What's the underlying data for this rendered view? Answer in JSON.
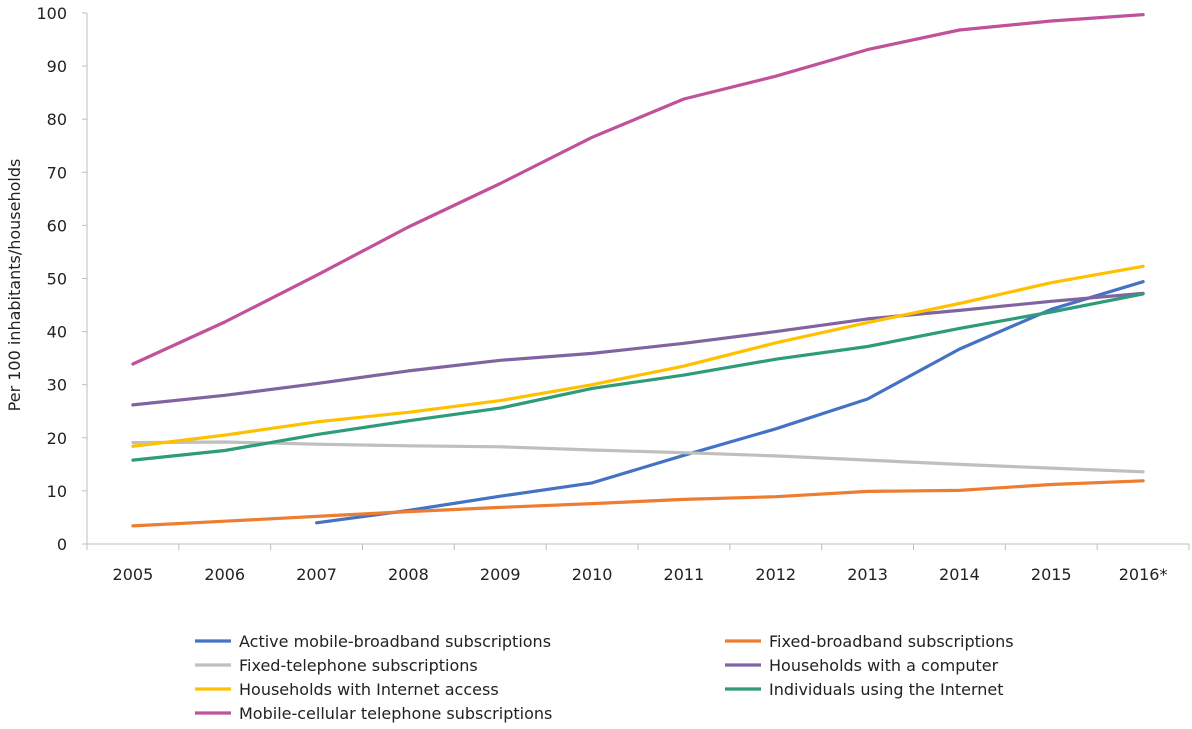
{
  "chart_data": {
    "type": "line",
    "title": "",
    "xlabel": "",
    "ylabel": "Per 100 inhabitants/households",
    "categories": [
      "2005",
      "2006",
      "2007",
      "2008",
      "2009",
      "2010",
      "2011",
      "2012",
      "2013",
      "2014",
      "2015",
      "2016*"
    ],
    "ylim": [
      0,
      100
    ],
    "yticks": [
      0,
      10,
      20,
      30,
      40,
      50,
      60,
      70,
      80,
      90,
      100
    ],
    "grid": false,
    "legend_position": "bottom",
    "series": [
      {
        "name": "Active mobile-broadband subscriptions",
        "color": "#4472C4",
        "values": [
          null,
          null,
          4.0,
          6.3,
          9.0,
          11.5,
          16.7,
          21.7,
          27.3,
          36.7,
          44.2,
          49.4
        ]
      },
      {
        "name": "Fixed-broadband subscriptions",
        "color": "#ED7D31",
        "values": [
          3.4,
          4.3,
          5.2,
          6.1,
          6.9,
          7.6,
          8.4,
          8.9,
          9.9,
          10.1,
          11.2,
          11.9
        ]
      },
      {
        "name": "Fixed-telephone subscriptions",
        "color": "#BFBFBF",
        "values": [
          19.1,
          19.2,
          18.8,
          18.5,
          18.3,
          17.7,
          17.2,
          16.6,
          15.8,
          15.0,
          14.3,
          13.6
        ]
      },
      {
        "name": "Households with a computer",
        "color": "#8064A2",
        "values": [
          26.2,
          28.0,
          30.2,
          32.6,
          34.6,
          35.9,
          37.8,
          40.0,
          42.4,
          44.0,
          45.7,
          47.2
        ]
      },
      {
        "name": "Households with Internet access",
        "color": "#FFC000",
        "values": [
          18.4,
          20.5,
          23.0,
          24.8,
          27.0,
          30.0,
          33.5,
          37.9,
          41.7,
          45.3,
          49.2,
          52.3
        ]
      },
      {
        "name": "Individuals using the Internet",
        "color": "#2E9B7A",
        "values": [
          15.8,
          17.6,
          20.6,
          23.2,
          25.6,
          29.3,
          31.8,
          34.8,
          37.2,
          40.6,
          43.7,
          47.1
        ]
      },
      {
        "name": "Mobile-cellular telephone subscriptions",
        "color": "#C0519A",
        "values": [
          33.9,
          41.8,
          50.6,
          59.7,
          67.9,
          76.6,
          83.8,
          88.1,
          93.1,
          96.8,
          98.5,
          99.7
        ]
      }
    ]
  }
}
